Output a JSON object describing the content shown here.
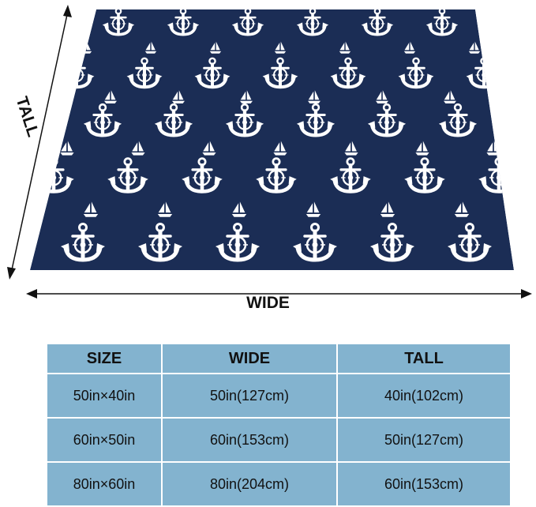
{
  "colors": {
    "blanket_navy": "#1b2d55",
    "motif_white": "#ffffff",
    "table_cell": "#84b4d0",
    "arrow": "#111111"
  },
  "motifs": {
    "primary": "anchor-icon",
    "secondary": "sailboat-icon"
  },
  "labels": {
    "tall": "TALL",
    "wide": "WIDE"
  },
  "size_table": {
    "headers": [
      "SIZE",
      "WIDE",
      "TALL"
    ],
    "rows": [
      [
        "50in×40in",
        "50in(127cm)",
        "40in(102cm)"
      ],
      [
        "60in×50in",
        "60in(153cm)",
        "50in(127cm)"
      ],
      [
        "80in×60in",
        "80in(204cm)",
        "60in(153cm)"
      ]
    ]
  }
}
